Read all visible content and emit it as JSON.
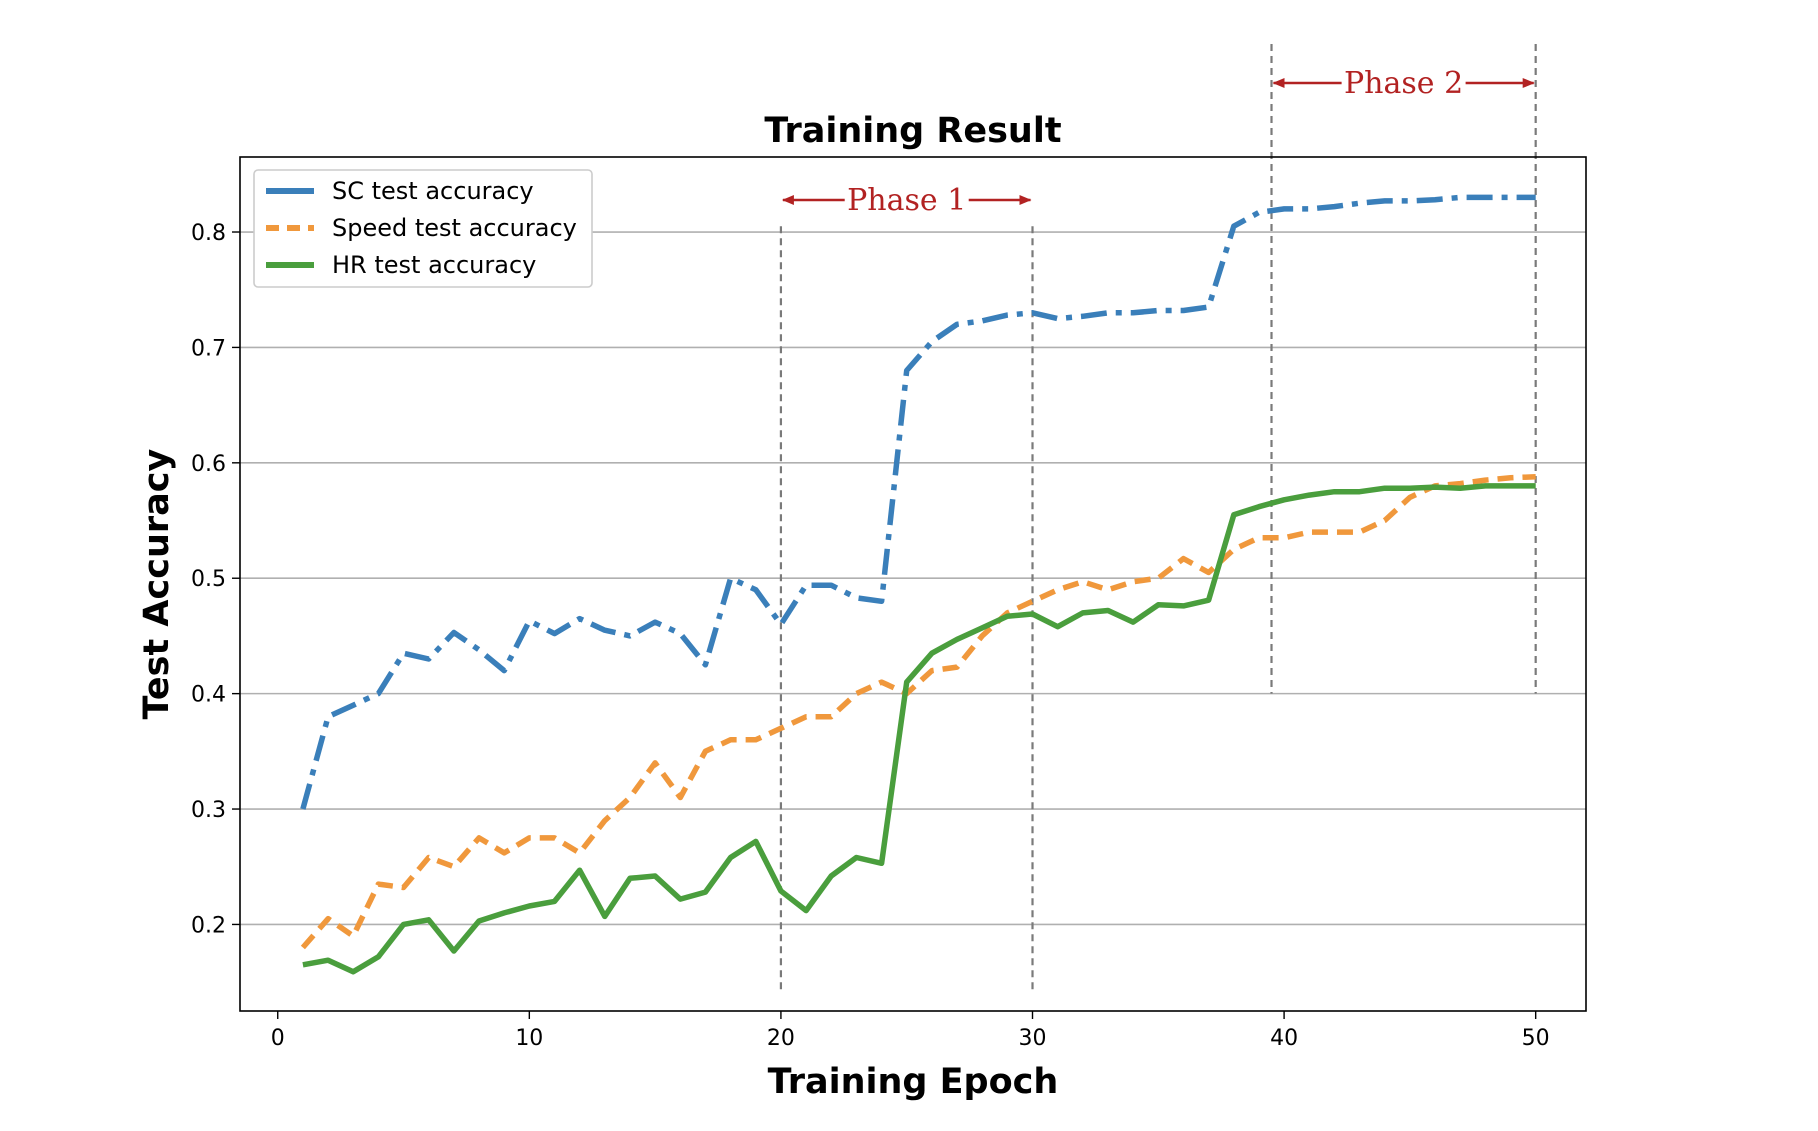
{
  "chart_data": {
    "type": "line",
    "title": "Training Result",
    "xlabel": "Training Epoch",
    "ylabel": "Test Accuracy",
    "xlim": [
      -1.5,
      52
    ],
    "ylim": [
      0.125,
      0.865
    ],
    "xticks": [
      0,
      10,
      20,
      30,
      40,
      50
    ],
    "yticks": [
      0.2,
      0.3,
      0.4,
      0.5,
      0.6,
      0.7,
      0.8
    ],
    "ytick_labels": [
      "0.2",
      "0.3",
      "0.4",
      "0.5",
      "0.6",
      "0.7",
      "0.8"
    ],
    "grid": "horizontal",
    "legend_position": "top-left",
    "x": [
      1,
      2,
      3,
      4,
      5,
      6,
      7,
      8,
      9,
      10,
      11,
      12,
      13,
      14,
      15,
      16,
      17,
      18,
      19,
      20,
      21,
      22,
      23,
      24,
      25,
      26,
      27,
      28,
      29,
      30,
      31,
      32,
      33,
      34,
      35,
      36,
      37,
      38,
      39,
      40,
      41,
      42,
      43,
      44,
      45,
      46,
      47,
      48,
      49,
      50
    ],
    "series": [
      {
        "name": "SC test accuracy",
        "color": "#3a7fba",
        "style": "dashdot",
        "values": [
          0.3,
          0.38,
          0.39,
          0.4,
          0.435,
          0.43,
          0.453,
          0.438,
          0.42,
          0.463,
          0.452,
          0.465,
          0.455,
          0.45,
          0.462,
          0.452,
          0.425,
          0.5,
          0.49,
          0.46,
          0.494,
          0.494,
          0.483,
          0.48,
          0.68,
          0.705,
          0.72,
          0.723,
          0.728,
          0.73,
          0.725,
          0.727,
          0.73,
          0.73,
          0.732,
          0.732,
          0.735,
          0.805,
          0.817,
          0.82,
          0.82,
          0.822,
          0.825,
          0.827,
          0.827,
          0.828,
          0.83,
          0.83,
          0.83,
          0.83
        ]
      },
      {
        "name": "Speed test accuracy",
        "color": "#f0983c",
        "style": "dashed",
        "values": [
          0.18,
          0.205,
          0.19,
          0.235,
          0.232,
          0.258,
          0.25,
          0.275,
          0.262,
          0.275,
          0.275,
          0.262,
          0.29,
          0.31,
          0.34,
          0.31,
          0.35,
          0.36,
          0.36,
          0.37,
          0.38,
          0.38,
          0.4,
          0.41,
          0.4,
          0.42,
          0.423,
          0.45,
          0.47,
          0.48,
          0.49,
          0.497,
          0.49,
          0.497,
          0.5,
          0.517,
          0.505,
          0.525,
          0.535,
          0.535,
          0.54,
          0.54,
          0.54,
          0.55,
          0.57,
          0.58,
          0.582,
          0.585,
          0.587,
          0.588
        ]
      },
      {
        "name": "HR test accuracy",
        "color": "#4a9e3d",
        "style": "solid",
        "values": [
          0.165,
          0.169,
          0.159,
          0.172,
          0.2,
          0.204,
          0.177,
          0.203,
          0.21,
          0.216,
          0.22,
          0.247,
          0.207,
          0.24,
          0.242,
          0.222,
          0.228,
          0.258,
          0.272,
          0.229,
          0.212,
          0.242,
          0.258,
          0.253,
          0.41,
          0.435,
          0.447,
          0.457,
          0.467,
          0.469,
          0.458,
          0.47,
          0.472,
          0.462,
          0.477,
          0.476,
          0.481,
          0.555,
          0.562,
          0.568,
          0.572,
          0.575,
          0.575,
          0.578,
          0.578,
          0.579,
          0.578,
          0.58,
          0.58,
          0.58
        ]
      }
    ],
    "annotations": [
      {
        "label": "Phase 1",
        "x_start": 20,
        "x_end": 30,
        "color": "#b22222"
      },
      {
        "label": "Phase 2",
        "x_start": 39.5,
        "x_end": 50,
        "color": "#b22222"
      }
    ]
  }
}
